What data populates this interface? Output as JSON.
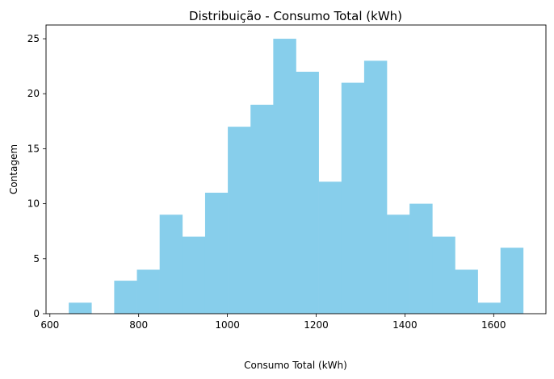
{
  "chart_data": {
    "type": "bar",
    "title": "Distribuição - Consumo Total (kWh)",
    "xlabel": "Consumo Total (kWh)",
    "ylabel": "Contagem",
    "bin_edges": [
      642.5,
      693.7,
      744.9,
      796.1,
      847.3,
      898.5,
      949.7,
      1000.9,
      1052.1,
      1103.3,
      1154.5,
      1205.7,
      1256.9,
      1308.1,
      1359.3,
      1410.5,
      1461.7,
      1512.9,
      1564.1,
      1615.3,
      1666.5
    ],
    "values": [
      1,
      0,
      3,
      4,
      9,
      7,
      11,
      17,
      19,
      25,
      22,
      12,
      21,
      23,
      9,
      10,
      7,
      4,
      1,
      6
    ],
    "xlim": [
      591.3,
      1717.7
    ],
    "ylim": [
      0,
      26.25
    ],
    "xticks": [
      "600",
      "800",
      "1000",
      "1200",
      "1400",
      "1600"
    ],
    "yticks": [
      "0",
      "5",
      "10",
      "15",
      "20",
      "25"
    ],
    "bar_color": "#87ceeb",
    "grid": false,
    "legend": "none"
  }
}
